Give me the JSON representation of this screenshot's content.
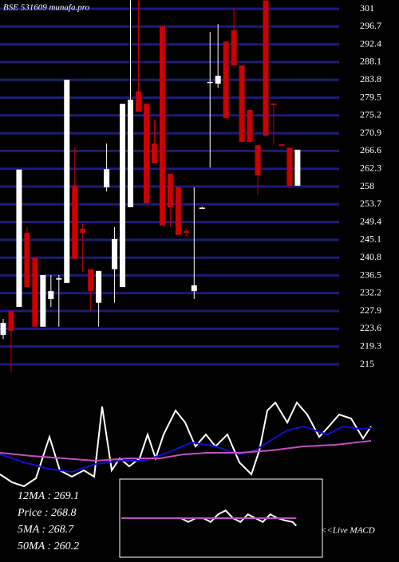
{
  "chart_data": [
    {
      "type": "candlestick",
      "title": "BSE 531609 munafa.pro",
      "categories": [
        null,
        null,
        null,
        null,
        null,
        null,
        null,
        null,
        null,
        null,
        null,
        null,
        null,
        null,
        null,
        null,
        null,
        null,
        null,
        null,
        null,
        null,
        null,
        null,
        null,
        null,
        null,
        null,
        null,
        null,
        null,
        null,
        null,
        null,
        null,
        null,
        null,
        null
      ],
      "open": [
        222.1,
        227.9,
        228.9,
        246.8,
        240.8,
        224.1,
        230.8,
        235.5,
        234.7,
        258.2,
        247.8,
        238.0,
        229.9,
        257.8,
        238.0,
        233.7,
        253.0,
        281.0,
        278.0,
        268.4,
        296.8,
        261.1,
        257.8,
        247.2,
        232.7,
        252.7,
        283.1,
        282.9,
        293.1,
        295.8,
        287.3,
        276.5,
        268.0,
        303.0,
        278.1,
        268.2,
        267.4,
        258.2
      ],
      "high": [
        226.0,
        227.9,
        262.1,
        248.2,
        240.8,
        236.6,
        236.6,
        236.6,
        283.8,
        267.4,
        249.1,
        238.0,
        237.6,
        268.4,
        248.2,
        278.0,
        303.1,
        303.0,
        278.0,
        274.2,
        296.8,
        261.1,
        257.8,
        247.8,
        257.8,
        253.1,
        295.4,
        297.3,
        293.1,
        301.2,
        287.3,
        276.5,
        268.0,
        303.0,
        278.1,
        268.2,
        267.4,
        266.9
      ],
      "low": [
        221.1,
        213.1,
        228.9,
        233.7,
        224.1,
        224.1,
        228.9,
        224.1,
        234.7,
        240.5,
        237.4,
        227.9,
        224.1,
        256.8,
        229.9,
        233.7,
        253.0,
        276.1,
        254.0,
        263.6,
        248.6,
        248.2,
        246.3,
        246.0,
        230.8,
        252.7,
        262.6,
        281.9,
        274.6,
        287.3,
        268.8,
        268.8,
        255.9,
        270.3,
        268.4,
        267.8,
        258.2,
        258.2
      ],
      "close": [
        225.0,
        223.1,
        262.1,
        233.7,
        224.1,
        236.6,
        232.7,
        235.8,
        283.8,
        240.5,
        246.8,
        232.7,
        237.6,
        262.2,
        245.3,
        278.0,
        279.0,
        276.1,
        254.0,
        263.6,
        248.6,
        253.0,
        246.3,
        246.8,
        234.1,
        252.9,
        283.3,
        284.8,
        274.6,
        287.3,
        268.8,
        268.8,
        260.7,
        270.3,
        277.7,
        267.8,
        258.2,
        266.9
      ],
      "up_color": "#ffffff",
      "down_color": "#cc0000",
      "grid_color": "#1c1c78",
      "ylim": [
        215,
        301
      ],
      "yticks": [
        301,
        296.7,
        292.4,
        288.1,
        283.8,
        279.5,
        275.2,
        270.9,
        266.6,
        262.3,
        258,
        253.7,
        249.4,
        245.1,
        240.8,
        236.5,
        232.2,
        227.9,
        223.6,
        219.3,
        215
      ],
      "grid": true
    },
    {
      "type": "line",
      "xlim": [
        0,
        465
      ],
      "ylim": [
        0,
        100
      ],
      "series": [
        {
          "color": "#ffffff",
          "x": [
            0,
            15,
            30,
            45,
            62,
            75,
            90,
            105,
            118,
            128,
            140,
            150,
            162,
            175,
            185,
            195,
            205,
            220,
            232,
            245,
            258,
            270,
            285,
            300,
            315,
            325,
            335,
            345,
            360,
            372,
            385,
            400,
            412,
            425,
            440,
            455,
            465
          ],
          "values": [
            5,
            -5,
            -10,
            0,
            52,
            10,
            2,
            10,
            2,
            90,
            10,
            25,
            15,
            25,
            55,
            25,
            55,
            85,
            70,
            40,
            55,
            40,
            55,
            20,
            5,
            35,
            85,
            95,
            70,
            95,
            80,
            52,
            65,
            80,
            75,
            50,
            65
          ]
        },
        {
          "color": "#1010d0",
          "x": [
            0,
            30,
            60,
            90,
            120,
            150,
            180,
            210,
            240,
            270,
            300,
            320,
            340,
            360,
            380,
            410,
            430,
            450,
            465
          ],
          "values": [
            30,
            20,
            12,
            8,
            18,
            22,
            22,
            32,
            45,
            40,
            30,
            35,
            48,
            60,
            65,
            55,
            65,
            62,
            63
          ]
        },
        {
          "color": "#c050c0",
          "x": [
            0,
            40,
            80,
            120,
            160,
            200,
            230,
            260,
            300,
            340,
            380,
            420,
            465
          ],
          "values": [
            32,
            28,
            25,
            22,
            25,
            25,
            30,
            32,
            32,
            35,
            40,
            42,
            47
          ]
        }
      ]
    },
    {
      "type": "macd",
      "label": "<<Live MACD",
      "xlim": [
        0,
        255
      ],
      "ylim": [
        -50,
        50
      ],
      "series": [
        {
          "color": "#ffffff",
          "x": [
            0,
            20,
            40,
            60,
            80,
            90,
            100,
            110,
            120,
            130,
            140,
            150,
            160,
            170,
            180,
            190,
            200,
            210,
            220,
            230,
            235
          ],
          "values": [
            0,
            0,
            0,
            0,
            0,
            -5,
            0,
            0,
            -5,
            5,
            10,
            0,
            -5,
            5,
            0,
            -5,
            5,
            0,
            -3,
            -5,
            -10
          ]
        },
        {
          "color": "#c050c0",
          "x": [
            0,
            235
          ],
          "values": [
            0,
            0
          ]
        }
      ]
    },
    {
      "type": "stats",
      "lines": [
        "12MA : 269.1",
        "Price  : 268.8",
        "5MA : 268.7",
        "50MA : 260.2"
      ]
    }
  ]
}
